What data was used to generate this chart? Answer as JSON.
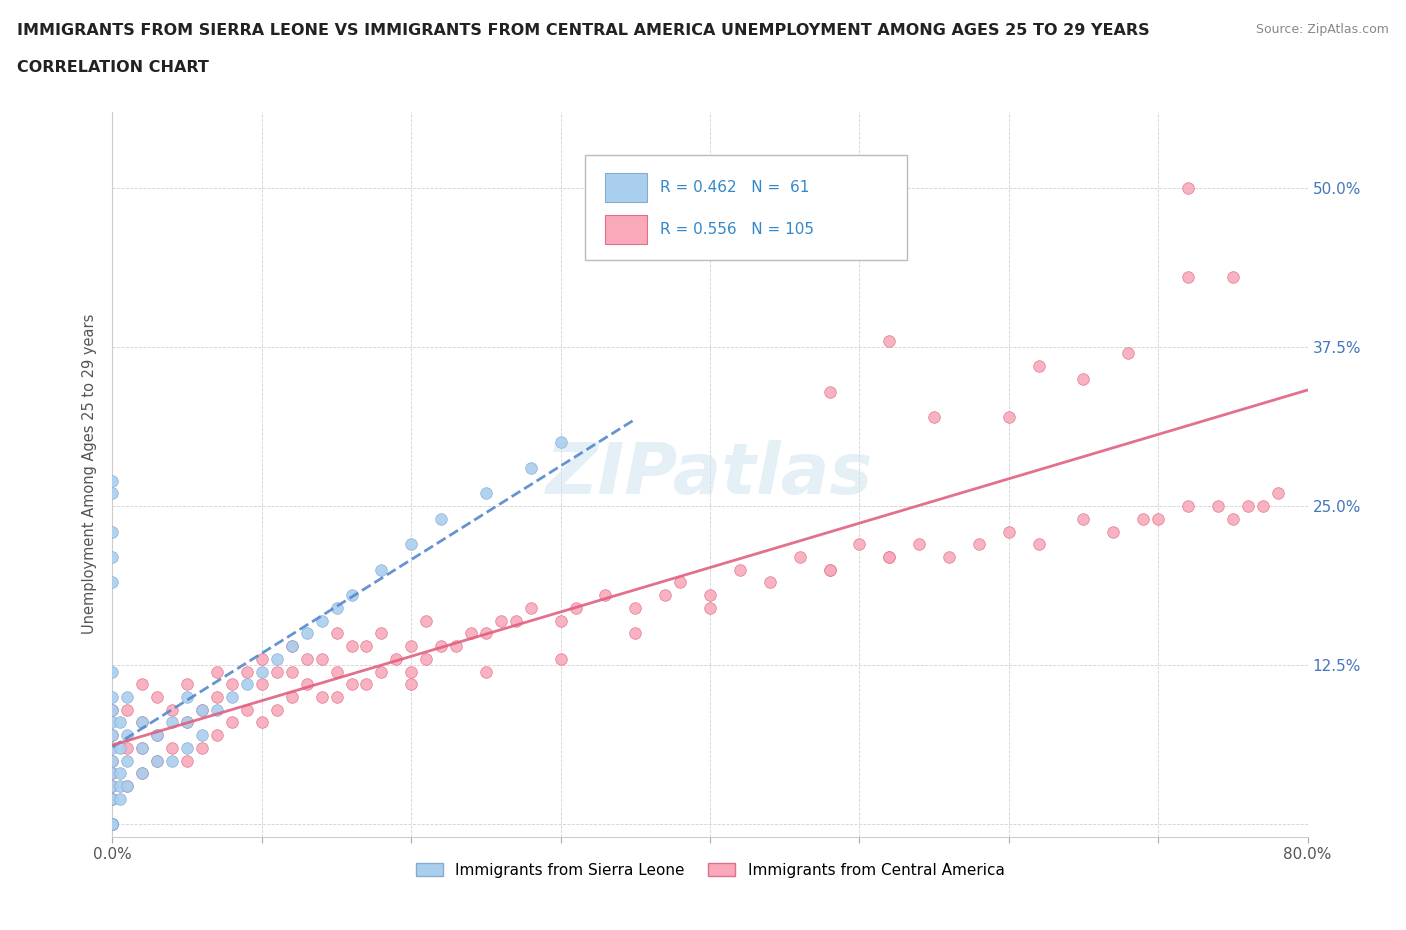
{
  "title_line1": "IMMIGRANTS FROM SIERRA LEONE VS IMMIGRANTS FROM CENTRAL AMERICA UNEMPLOYMENT AMONG AGES 25 TO 29 YEARS",
  "title_line2": "CORRELATION CHART",
  "source_text": "Source: ZipAtlas.com",
  "ylabel": "Unemployment Among Ages 25 to 29 years",
  "xlim": [
    0.0,
    0.8
  ],
  "ylim": [
    -0.01,
    0.56
  ],
  "ytick_positions": [
    0.0,
    0.125,
    0.25,
    0.375,
    0.5
  ],
  "ytick_labels": [
    "",
    "12.5%",
    "25.0%",
    "37.5%",
    "50.0%"
  ],
  "watermark": "ZIPatlas",
  "legend_R1": "0.462",
  "legend_N1": " 61",
  "legend_R2": "0.556",
  "legend_N2": "105",
  "sierra_leone_color": "#aacfee",
  "sierra_leone_edge": "#88aacc",
  "sierra_leone_line": "#5588cc",
  "central_america_color": "#f8aabb",
  "central_america_edge": "#e07088",
  "central_america_line": "#e06080",
  "sl_x": [
    0.0,
    0.0,
    0.0,
    0.0,
    0.0,
    0.0,
    0.0,
    0.0,
    0.0,
    0.0,
    0.0,
    0.0,
    0.0,
    0.0,
    0.0,
    0.0,
    0.0,
    0.0,
    0.0,
    0.0,
    0.0,
    0.0,
    0.0,
    0.0,
    0.005,
    0.005,
    0.005,
    0.005,
    0.005,
    0.01,
    0.01,
    0.01,
    0.01,
    0.02,
    0.02,
    0.02,
    0.03,
    0.03,
    0.04,
    0.04,
    0.05,
    0.05,
    0.05,
    0.06,
    0.06,
    0.07,
    0.08,
    0.09,
    0.1,
    0.11,
    0.12,
    0.13,
    0.14,
    0.15,
    0.16,
    0.18,
    0.2,
    0.22,
    0.25,
    0.28,
    0.3
  ],
  "sl_y": [
    0.0,
    0.0,
    0.0,
    0.0,
    0.0,
    0.0,
    0.0,
    0.0,
    0.02,
    0.02,
    0.03,
    0.04,
    0.05,
    0.06,
    0.07,
    0.08,
    0.09,
    0.1,
    0.12,
    0.27,
    0.26,
    0.23,
    0.21,
    0.19,
    0.02,
    0.03,
    0.04,
    0.06,
    0.08,
    0.03,
    0.05,
    0.07,
    0.1,
    0.04,
    0.06,
    0.08,
    0.05,
    0.07,
    0.05,
    0.08,
    0.06,
    0.08,
    0.1,
    0.07,
    0.09,
    0.09,
    0.1,
    0.11,
    0.12,
    0.13,
    0.14,
    0.15,
    0.16,
    0.17,
    0.18,
    0.2,
    0.22,
    0.24,
    0.26,
    0.28,
    0.3
  ],
  "ca_x": [
    0.0,
    0.0,
    0.0,
    0.0,
    0.0,
    0.0,
    0.0,
    0.0,
    0.01,
    0.01,
    0.01,
    0.02,
    0.02,
    0.02,
    0.02,
    0.03,
    0.03,
    0.03,
    0.04,
    0.04,
    0.05,
    0.05,
    0.05,
    0.06,
    0.06,
    0.07,
    0.07,
    0.07,
    0.08,
    0.08,
    0.09,
    0.09,
    0.1,
    0.1,
    0.1,
    0.11,
    0.11,
    0.12,
    0.12,
    0.12,
    0.13,
    0.13,
    0.14,
    0.14,
    0.15,
    0.15,
    0.15,
    0.16,
    0.16,
    0.17,
    0.17,
    0.18,
    0.18,
    0.19,
    0.2,
    0.2,
    0.21,
    0.21,
    0.22,
    0.23,
    0.24,
    0.25,
    0.26,
    0.27,
    0.28,
    0.3,
    0.31,
    0.33,
    0.35,
    0.37,
    0.38,
    0.4,
    0.42,
    0.44,
    0.46,
    0.48,
    0.5,
    0.52,
    0.54,
    0.56,
    0.58,
    0.6,
    0.62,
    0.65,
    0.67,
    0.69,
    0.7,
    0.72,
    0.74,
    0.75,
    0.76,
    0.77,
    0.78,
    0.52,
    0.48,
    0.4,
    0.35,
    0.3,
    0.25,
    0.2,
    0.6,
    0.65,
    0.68,
    0.72,
    0.5
  ],
  "ca_y": [
    0.0,
    0.0,
    0.02,
    0.03,
    0.04,
    0.05,
    0.07,
    0.09,
    0.03,
    0.06,
    0.09,
    0.04,
    0.06,
    0.08,
    0.11,
    0.05,
    0.07,
    0.1,
    0.06,
    0.09,
    0.05,
    0.08,
    0.11,
    0.06,
    0.09,
    0.07,
    0.1,
    0.12,
    0.08,
    0.11,
    0.09,
    0.12,
    0.08,
    0.11,
    0.13,
    0.09,
    0.12,
    0.1,
    0.12,
    0.14,
    0.11,
    0.13,
    0.1,
    0.13,
    0.1,
    0.12,
    0.15,
    0.11,
    0.14,
    0.11,
    0.14,
    0.12,
    0.15,
    0.13,
    0.12,
    0.14,
    0.13,
    0.16,
    0.14,
    0.14,
    0.15,
    0.15,
    0.16,
    0.16,
    0.17,
    0.16,
    0.17,
    0.18,
    0.17,
    0.18,
    0.19,
    0.18,
    0.2,
    0.19,
    0.21,
    0.2,
    0.22,
    0.21,
    0.22,
    0.21,
    0.22,
    0.23,
    0.22,
    0.24,
    0.23,
    0.24,
    0.24,
    0.25,
    0.25,
    0.24,
    0.25,
    0.25,
    0.26,
    0.21,
    0.2,
    0.17,
    0.15,
    0.13,
    0.12,
    0.11,
    0.32,
    0.35,
    0.37,
    0.43,
    0.5
  ],
  "ca_outlier_x": [
    0.72,
    0.75,
    0.52,
    0.48,
    0.55,
    0.62
  ],
  "ca_outlier_y": [
    0.5,
    0.43,
    0.38,
    0.34,
    0.32,
    0.36
  ]
}
